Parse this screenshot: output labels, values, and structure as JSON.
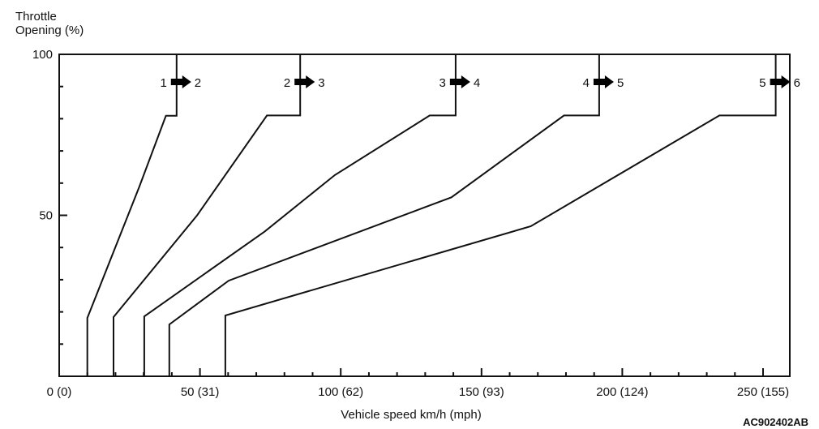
{
  "chart_data": {
    "type": "line",
    "title": "",
    "ylabel_line1": "Throttle",
    "ylabel_line2": "Opening (%)",
    "xlabel": "Vehicle speed  km/h (mph)",
    "xlim": [
      0,
      259.5
    ],
    "ylim": [
      0,
      100
    ],
    "x_tick_labels": [
      "0 (0)",
      "50 (31)",
      "100 (62)",
      "150 (93)",
      "200 (124)",
      "250 (155)"
    ],
    "x_tick_values": [
      0,
      50,
      100,
      150,
      200,
      250
    ],
    "y_tick_labels": [
      "50",
      "100"
    ],
    "y_tick_values": [
      50,
      100
    ],
    "x_minor_step": 10,
    "y_minor_step": 10,
    "grid": false,
    "series": [
      {
        "name": "1-2 upshift",
        "from": "1",
        "to": "2",
        "points": [
          [
            10,
            0
          ],
          [
            10,
            18.1
          ],
          [
            28.5,
            59
          ],
          [
            37.9,
            80.9
          ],
          [
            41.7,
            80.9
          ],
          [
            41.7,
            100
          ]
        ]
      },
      {
        "name": "2-3 upshift",
        "from": "2",
        "to": "3",
        "points": [
          [
            19.3,
            0
          ],
          [
            19.3,
            18.4
          ],
          [
            49,
            50
          ],
          [
            73.8,
            81
          ],
          [
            85.6,
            81
          ],
          [
            85.6,
            100
          ]
        ]
      },
      {
        "name": "3-4 upshift",
        "from": "3",
        "to": "4",
        "points": [
          [
            30.2,
            0
          ],
          [
            30.2,
            18.6
          ],
          [
            73,
            45
          ],
          [
            97.9,
            62.5
          ],
          [
            131.6,
            81
          ],
          [
            140.8,
            81
          ],
          [
            140.8,
            100
          ]
        ]
      },
      {
        "name": "4-5 upshift",
        "from": "4",
        "to": "5",
        "points": [
          [
            39.1,
            0
          ],
          [
            39.1,
            16.1
          ],
          [
            60.2,
            29.7
          ],
          [
            139.3,
            55.6
          ],
          [
            179.3,
            81
          ],
          [
            191.8,
            81
          ],
          [
            191.8,
            100
          ]
        ]
      },
      {
        "name": "5-6 upshift",
        "from": "5",
        "to": "6",
        "points": [
          [
            59,
            0
          ],
          [
            59,
            18.9
          ],
          [
            167.5,
            46.6
          ],
          [
            234.5,
            81
          ],
          [
            254.5,
            81
          ],
          [
            254.5,
            100
          ]
        ]
      }
    ],
    "figure_code": "AC902402AB"
  }
}
